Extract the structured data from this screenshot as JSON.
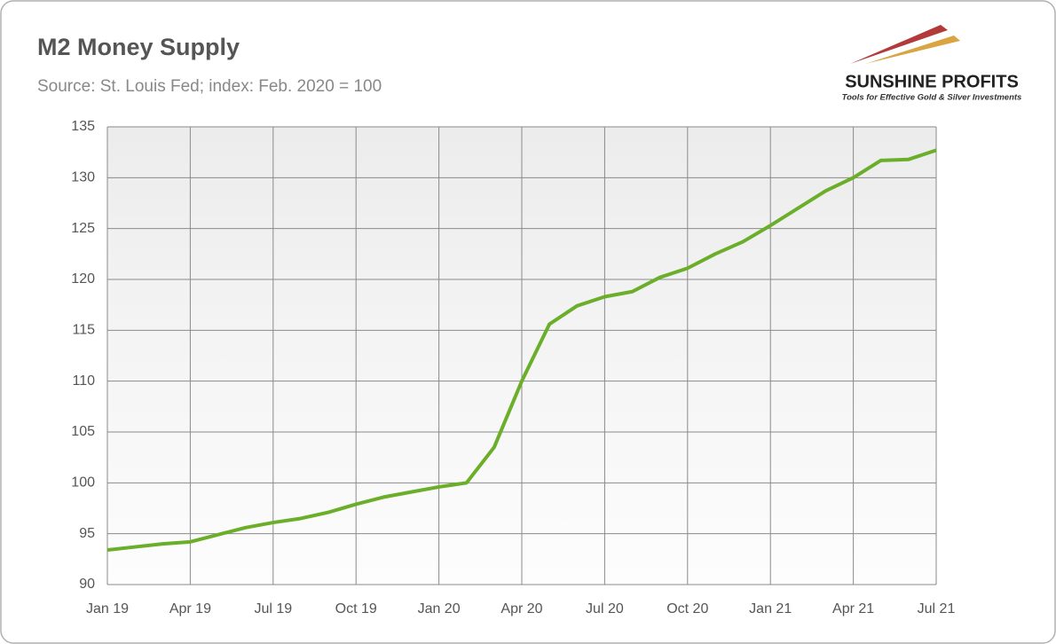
{
  "chart_data": {
    "type": "line",
    "title": "M2 Money Supply",
    "subtitle": "Source: St. Louis Fed; index: Feb. 2020 = 100",
    "logo": {
      "name": "SUNSHINE PROFITS",
      "tagline": "Tools for Effective Gold & Silver Investments"
    },
    "categories": [
      "Jan 19",
      null,
      null,
      "Apr 19",
      null,
      null,
      "Jul 19",
      null,
      null,
      "Oct 19",
      null,
      null,
      "Jan 20",
      null,
      null,
      "Apr 20",
      null,
      null,
      "Jul 20",
      null,
      null,
      "Oct 20",
      null,
      null,
      "Jan 21",
      null,
      null,
      "Apr 21",
      null,
      null,
      "Jul 21"
    ],
    "series": [
      {
        "name": "M2",
        "color": "#6aae2a",
        "values": [
          93.4,
          93.7,
          94.0,
          94.2,
          94.9,
          95.6,
          96.1,
          96.5,
          97.1,
          97.9,
          98.6,
          99.1,
          99.6,
          100.0,
          103.5,
          110.0,
          115.6,
          117.4,
          118.3,
          118.8,
          120.2,
          121.1,
          122.5,
          123.7,
          125.3,
          127.0,
          128.7,
          130.0,
          131.7,
          131.8,
          132.7
        ]
      }
    ],
    "ylim": [
      90,
      135
    ],
    "yticks": [
      90,
      95,
      100,
      105,
      110,
      115,
      120,
      125,
      130,
      135
    ],
    "grid": true
  }
}
